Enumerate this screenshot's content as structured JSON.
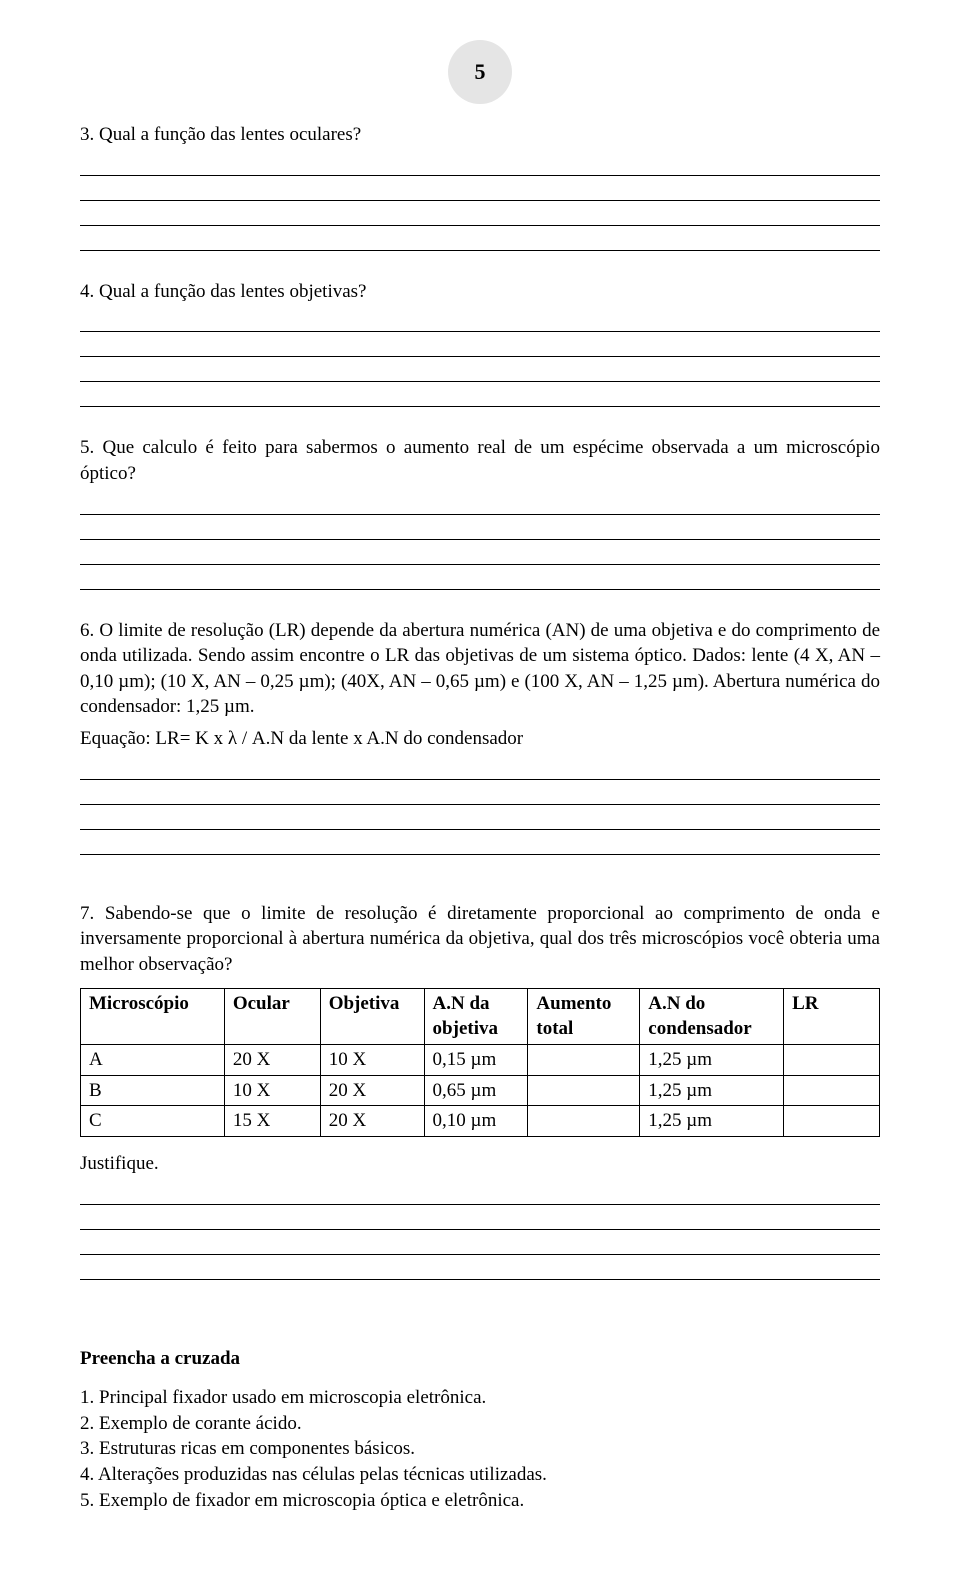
{
  "page_number": "5",
  "q3": "3. Qual a função das lentes oculares?",
  "q4": "4. Qual a função das lentes objetivas?",
  "q5": "5. Que calculo é feito para sabermos o aumento real de um espécime observada a um microscópio óptico?",
  "q6_p1": "6.  O limite de resolução (LR) depende da abertura numérica (AN) de uma objetiva e do comprimento de onda utilizada. Sendo assim encontre o LR das objetivas de um sistema óptico. Dados: lente (4 X, AN – 0,10 µm); (10 X, AN – 0,25 µm); (40X, AN – 0,65 µm) e  (100        X, AN – 1,25 µm). Abertura numérica do condensador: 1,25 µm.",
  "q6_p2": "Equação: LR= K x  λ / A.N da lente x A.N do condensador",
  "q7": "7. Sabendo-se que o limite de resolução é diretamente proporcional ao comprimento de onda e inversamente proporcional à abertura numérica da objetiva, qual dos três microscópios você obteria uma melhor observação?",
  "table": {
    "headers": [
      "Microscópio",
      "Ocular",
      "Objetiva",
      "A.N da objetiva",
      "Aumento total",
      "A.N do condensador",
      "LR"
    ],
    "rows": [
      [
        "A",
        "20 X",
        "10 X",
        "0,15 µm",
        "",
        "1,25 µm",
        ""
      ],
      [
        "B",
        "10 X",
        "20 X",
        "0,65 µm",
        "",
        "1,25 µm",
        ""
      ],
      [
        "C",
        "15 X",
        "20 X",
        "0,10 µm",
        "",
        "1,25 µm",
        ""
      ]
    ],
    "col_widths": [
      "18%",
      "12%",
      "13%",
      "13%",
      "14%",
      "18%",
      "12%"
    ]
  },
  "justifique": "Justifique.",
  "cruzada_title": "Preencha a cruzada",
  "cruzada_items": [
    "1.  Principal fixador usado em microscopia eletrônica.",
    "2.  Exemplo de corante ácido.",
    "3.  Estruturas ricas em componentes básicos.",
    "4.  Alterações produzidas nas células pelas técnicas utilizadas.",
    "5.  Exemplo de fixador em microscopia óptica e eletrônica."
  ],
  "blank_group_counts": {
    "after_q3": 4,
    "after_q4": 4,
    "after_q5": 4,
    "after_q6": 4,
    "after_justifique": 4
  }
}
